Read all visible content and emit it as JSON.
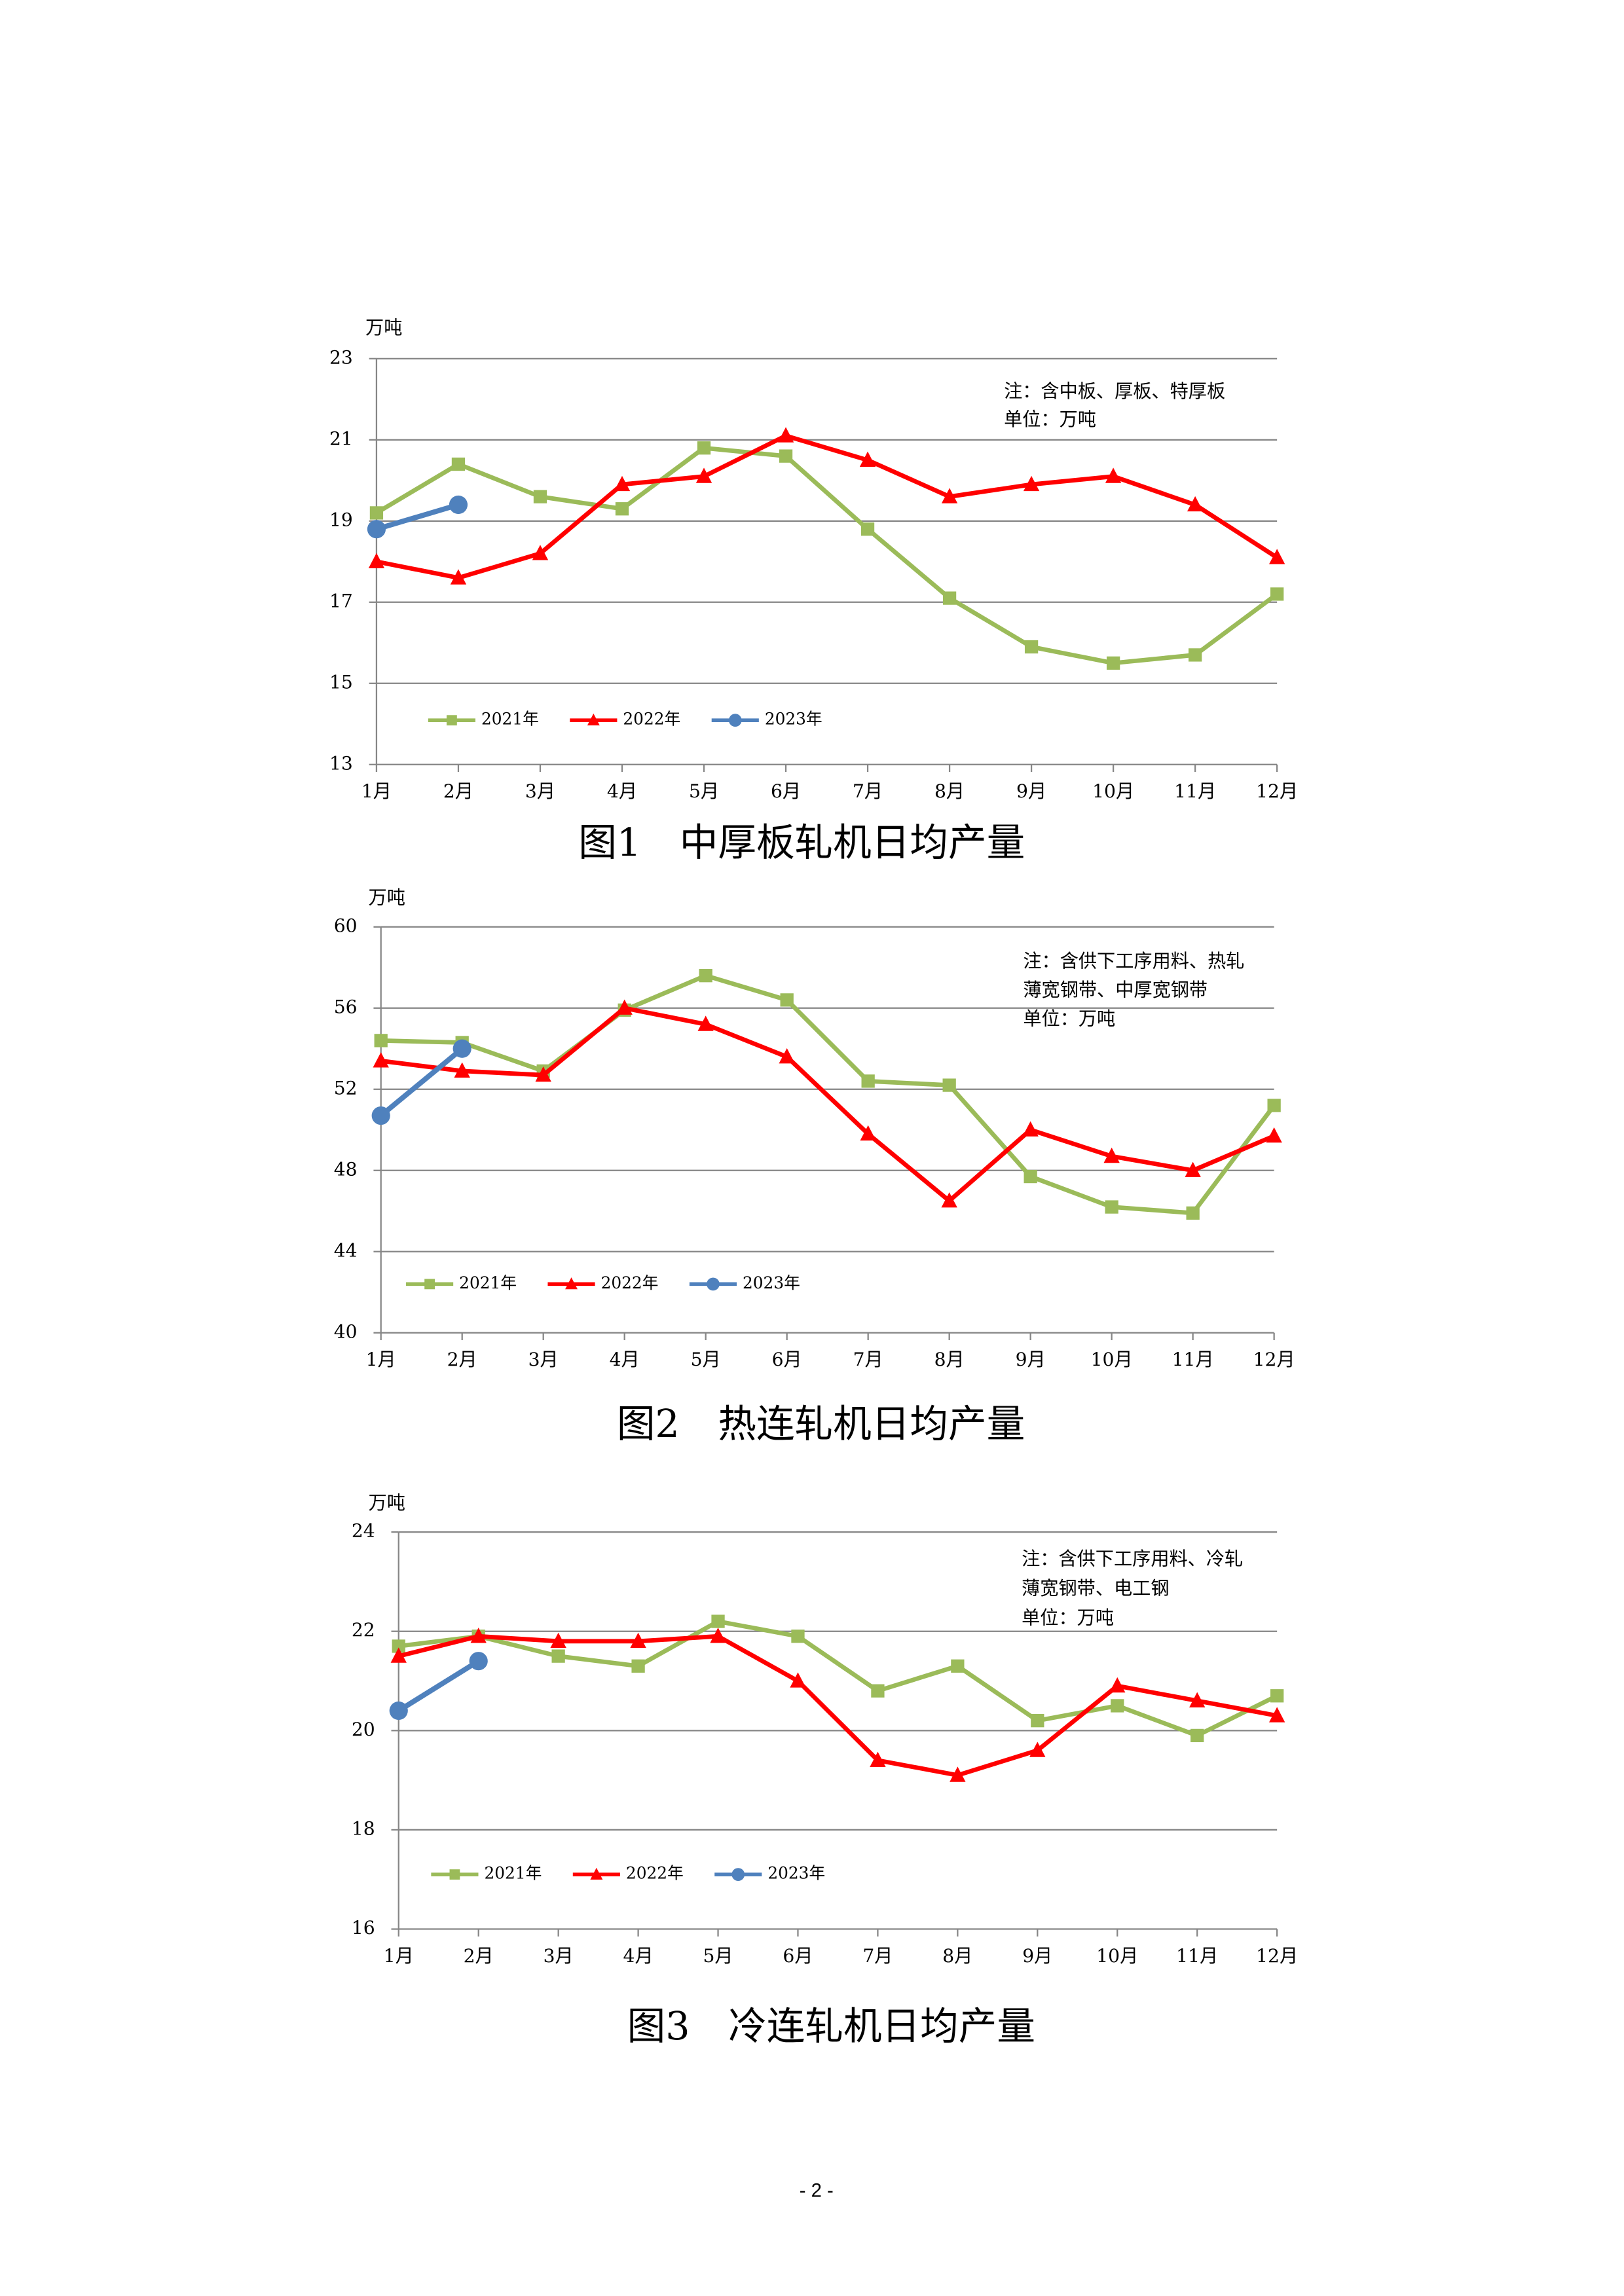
{
  "chart_data": [
    {
      "type": "line",
      "title": "图1　中厚板轧机日均产量",
      "y_unit": "万吨",
      "notes": [
        "注：含中板、厚板、特厚板",
        "单位：万吨"
      ],
      "categories": [
        "1月",
        "2月",
        "3月",
        "4月",
        "5月",
        "6月",
        "7月",
        "8月",
        "9月",
        "10月",
        "11月",
        "12月"
      ],
      "series": [
        {
          "name": "2021年",
          "color": "#9bbb59",
          "marker": "square",
          "values": [
            19.2,
            20.4,
            19.6,
            19.3,
            20.8,
            20.6,
            18.8,
            17.1,
            15.9,
            15.5,
            15.7,
            17.2
          ]
        },
        {
          "name": "2022年",
          "color": "#ff0000",
          "marker": "triangle",
          "values": [
            18.0,
            17.6,
            18.2,
            19.9,
            20.1,
            21.1,
            20.5,
            19.6,
            19.9,
            20.1,
            19.4,
            18.1
          ]
        },
        {
          "name": "2023年",
          "color": "#4f81bd",
          "marker": "circle",
          "values": [
            18.8,
            19.4,
            null,
            null,
            null,
            null,
            null,
            null,
            null,
            null,
            null,
            null
          ]
        }
      ],
      "ylim": [
        13,
        23
      ],
      "yticks": [
        13,
        15,
        17,
        19,
        21,
        23
      ],
      "grid": true
    },
    {
      "type": "line",
      "title": "图2　热连轧机日均产量",
      "y_unit": "万吨",
      "notes": [
        "注：含供下工序用料、热轧",
        "薄宽钢带、中厚宽钢带",
        "单位：万吨"
      ],
      "categories": [
        "1月",
        "2月",
        "3月",
        "4月",
        "5月",
        "6月",
        "7月",
        "8月",
        "9月",
        "10月",
        "11月",
        "12月"
      ],
      "series": [
        {
          "name": "2021年",
          "color": "#9bbb59",
          "marker": "square",
          "values": [
            54.4,
            54.3,
            52.9,
            55.9,
            57.6,
            56.4,
            52.4,
            52.2,
            47.7,
            46.2,
            45.9,
            51.2
          ]
        },
        {
          "name": "2022年",
          "color": "#ff0000",
          "marker": "triangle",
          "values": [
            53.4,
            52.9,
            52.7,
            56.0,
            55.2,
            53.6,
            49.8,
            46.5,
            50.0,
            48.7,
            48.0,
            49.7
          ]
        },
        {
          "name": "2023年",
          "color": "#4f81bd",
          "marker": "circle",
          "values": [
            50.7,
            54.0,
            null,
            null,
            null,
            null,
            null,
            null,
            null,
            null,
            null,
            null
          ]
        }
      ],
      "ylim": [
        40,
        60
      ],
      "yticks": [
        40,
        44,
        48,
        52,
        56,
        60
      ],
      "grid": true
    },
    {
      "type": "line",
      "title": "图3　冷连轧机日均产量",
      "y_unit": "万吨",
      "notes": [
        "注：含供下工序用料、冷轧",
        "薄宽钢带、电工钢",
        "单位：万吨"
      ],
      "categories": [
        "1月",
        "2月",
        "3月",
        "4月",
        "5月",
        "6月",
        "7月",
        "8月",
        "9月",
        "10月",
        "11月",
        "12月"
      ],
      "series": [
        {
          "name": "2021年",
          "color": "#9bbb59",
          "marker": "square",
          "values": [
            21.7,
            21.9,
            21.5,
            21.3,
            22.2,
            21.9,
            20.8,
            21.3,
            20.2,
            20.5,
            19.9,
            20.7
          ]
        },
        {
          "name": "2022年",
          "color": "#ff0000",
          "marker": "triangle",
          "values": [
            21.5,
            21.9,
            21.8,
            21.8,
            21.9,
            21.0,
            19.4,
            19.1,
            19.6,
            20.9,
            20.6,
            20.3
          ]
        },
        {
          "name": "2023年",
          "color": "#4f81bd",
          "marker": "circle",
          "values": [
            20.4,
            21.4,
            null,
            null,
            null,
            null,
            null,
            null,
            null,
            null,
            null,
            null
          ]
        }
      ],
      "ylim": [
        16,
        24
      ],
      "yticks": [
        16,
        18,
        20,
        22,
        24
      ],
      "grid": true
    }
  ],
  "page_number": "- 2 -"
}
